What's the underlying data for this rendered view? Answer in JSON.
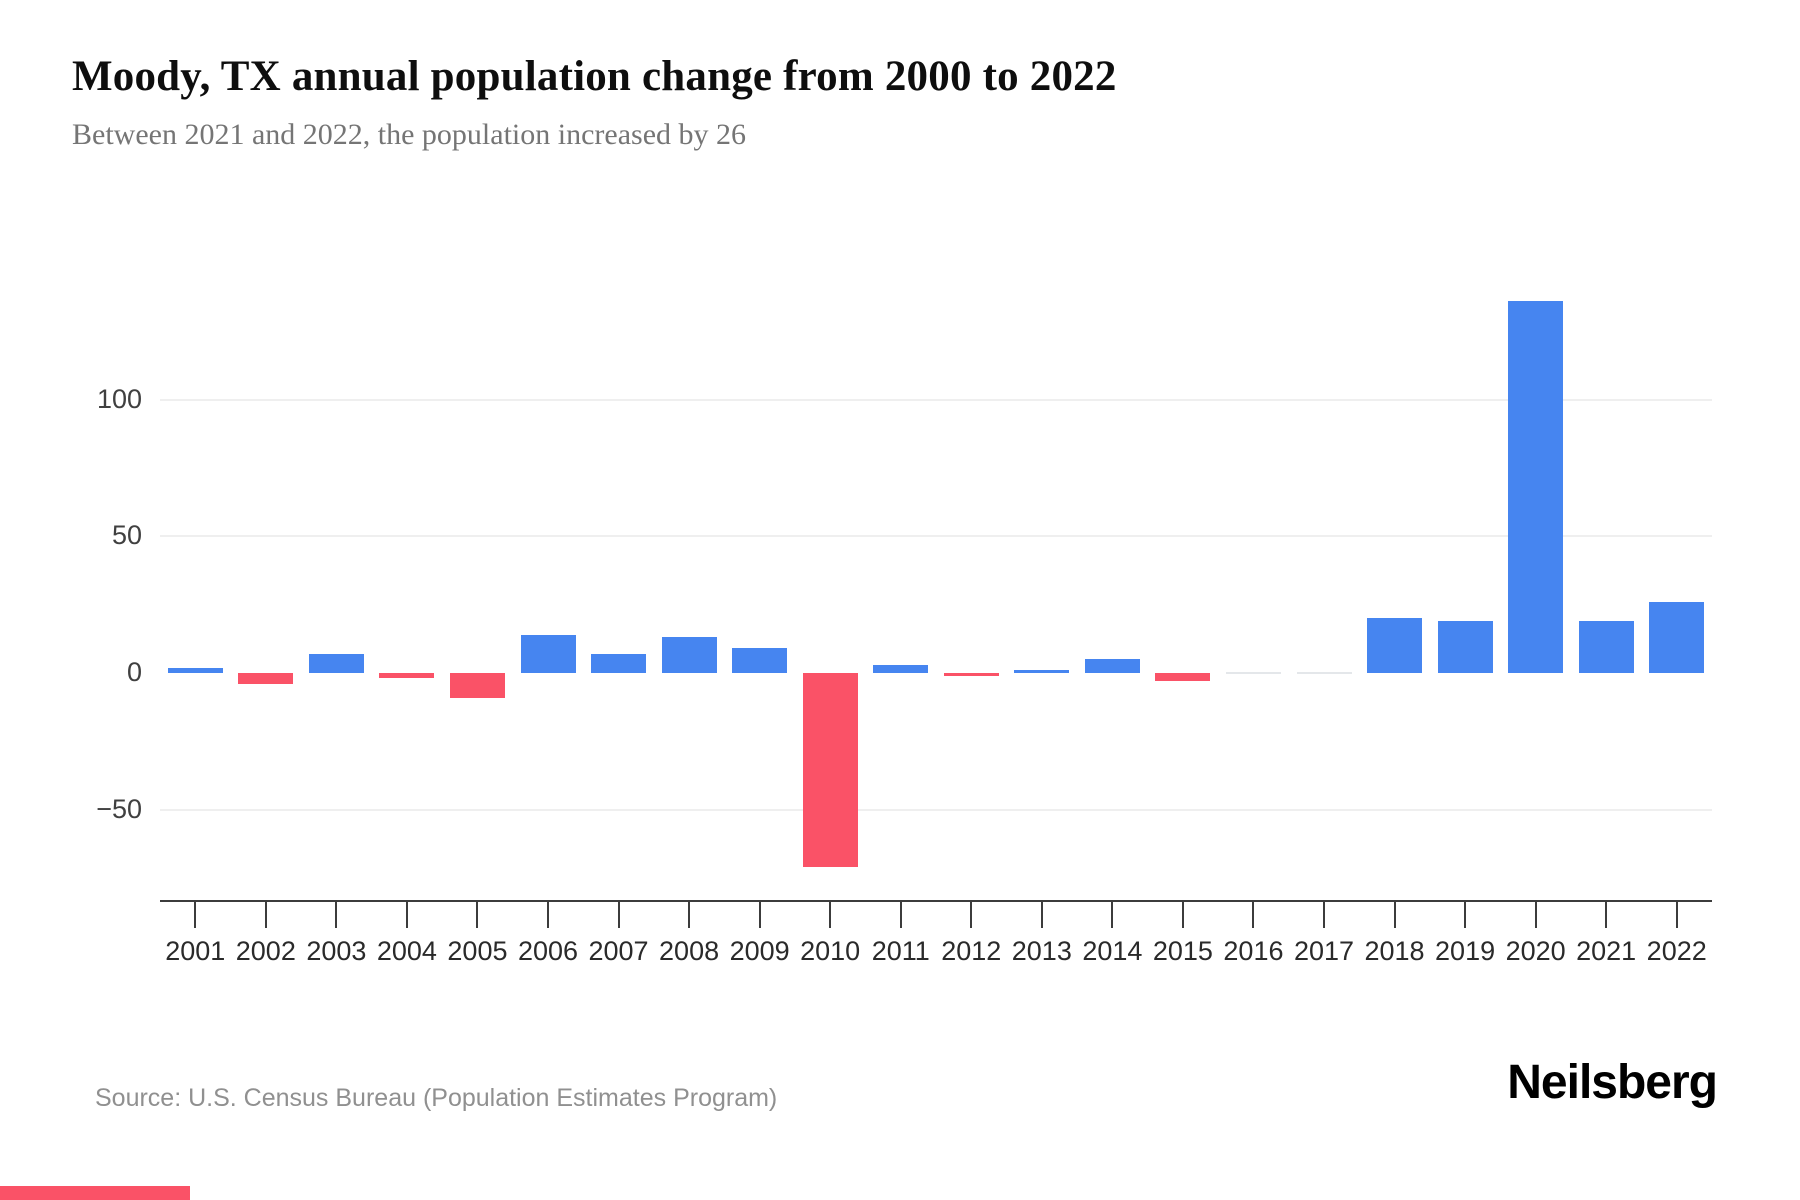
{
  "header": {
    "title": "Moody, TX annual population change from 2000 to 2022",
    "subtitle": "Between 2021 and 2022, the population increased by 26"
  },
  "chart_data": {
    "type": "bar",
    "title": "Moody, TX annual population change from 2000 to 2022",
    "categories": [
      "2001",
      "2002",
      "2003",
      "2004",
      "2005",
      "2006",
      "2007",
      "2008",
      "2009",
      "2010",
      "2011",
      "2012",
      "2013",
      "2014",
      "2015",
      "2016",
      "2017",
      "2018",
      "2019",
      "2020",
      "2021",
      "2022"
    ],
    "values": [
      2,
      -4,
      7,
      -2,
      -9,
      14,
      7,
      13,
      9,
      -71,
      3,
      -1,
      1,
      5,
      -3,
      0,
      0,
      20,
      19,
      136,
      19,
      26
    ],
    "xlabel": "",
    "ylabel": "",
    "y_ticks": [
      100,
      50,
      0,
      -50
    ],
    "y_tick_labels": [
      "100",
      "50",
      "0",
      "−50"
    ],
    "ylim": [
      -83,
      158
    ],
    "grid": "horizontal-light",
    "legend": "none",
    "colors": {
      "positive": "#4685F0",
      "negative": "#FA5267",
      "zero_bar": "#e4e7ea"
    }
  },
  "footer": {
    "source": "Source: U.S. Census Bureau (Population Estimates Program)",
    "brand": "Neilsberg"
  }
}
